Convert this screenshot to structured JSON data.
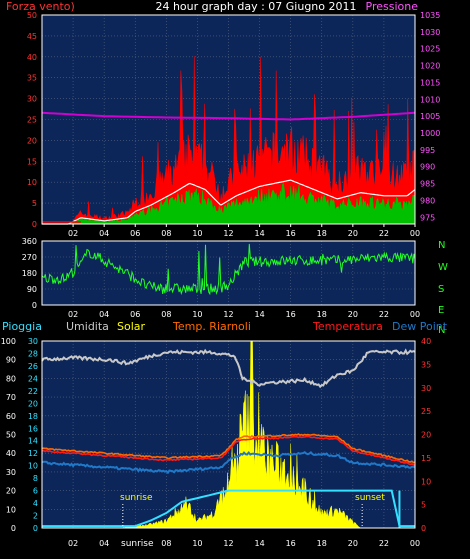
{
  "header": {
    "left_label": "Forza vento)",
    "title": "24 hour graph day : 07 Giugno 2011",
    "right_label": "Pressione"
  },
  "wind_chart": {
    "left_axis": [
      "50",
      "45",
      "40",
      "35",
      "30",
      "25",
      "20",
      "15",
      "10",
      "5",
      "0"
    ],
    "right_axis": [
      "1035",
      "1030",
      "1025",
      "1020",
      "1015",
      "1010",
      "1005",
      "1000",
      "995",
      "990",
      "985",
      "980",
      "975"
    ],
    "ylim_left": [
      0,
      50
    ],
    "ylim_right": [
      973,
      1035
    ],
    "pressure_profile": {
      "x": [
        0,
        4,
        8,
        12,
        16,
        20,
        24
      ],
      "hpa": [
        1006.0,
        1005.0,
        1004.6,
        1004.4,
        1004.0,
        1004.8,
        1006.0
      ]
    }
  },
  "direction_chart": {
    "left_axis": [
      "360",
      "270",
      "180",
      "90",
      "0"
    ],
    "compass": [
      "N",
      "W",
      "S",
      "E",
      "N"
    ],
    "ylim": [
      0,
      360
    ]
  },
  "legend": {
    "pioggia": "Pioggia",
    "umidita": "Umidita",
    "solar": "Solar",
    "riarnoli": "Temp. Riarnoli",
    "temperatura": "Temperatura",
    "dew": "Dew Point"
  },
  "weather_chart": {
    "rain_axis": [
      "100",
      "90",
      "80",
      "70",
      "60",
      "50",
      "40",
      "30",
      "20",
      "10",
      "0"
    ],
    "humidity_axis": [
      "30",
      "28",
      "26",
      "24",
      "22",
      "20",
      "18",
      "16",
      "14",
      "12",
      "10",
      "8",
      "6",
      "4",
      "2",
      "0"
    ],
    "temp_axis": [
      "40",
      "35",
      "30",
      "25",
      "20",
      "15",
      "10",
      "5",
      "0"
    ],
    "sunrise": "sunrise",
    "sunset": "sunset",
    "humidity_profile": {
      "x": [
        0,
        2,
        4.3,
        5.5,
        7,
        8,
        11,
        12.4,
        12.9,
        13.5,
        14,
        15,
        17,
        18,
        19,
        20,
        21,
        24
      ],
      "pct": [
        90,
        91,
        90,
        88,
        92,
        94,
        94,
        92,
        80,
        78,
        77,
        78,
        79,
        76,
        82,
        84,
        94,
        94
      ]
    },
    "riarnoli_profile": {
      "x": [
        0,
        4,
        8,
        11.5,
        12,
        12.5,
        13,
        17,
        19,
        20,
        22,
        24
      ],
      "temp": [
        17,
        16,
        15,
        15.5,
        17,
        19,
        19.5,
        20,
        19.5,
        17,
        15.5,
        14
      ]
    },
    "temperatura_profile": {
      "x": [
        0,
        4,
        8,
        11.5,
        12,
        12.5,
        13,
        17,
        19,
        20,
        22,
        24
      ],
      "temp": [
        16.5,
        15.5,
        14.5,
        15,
        16.5,
        18.5,
        19,
        19.5,
        19,
        16.5,
        15,
        13.5
      ]
    },
    "dew_profile": {
      "x": [
        0,
        4,
        8,
        11.5,
        12,
        13,
        15,
        17,
        19,
        20,
        22,
        24
      ],
      "temp": [
        14,
        13,
        12,
        13,
        14.5,
        16,
        15.5,
        16,
        15.5,
        14,
        13.5,
        13
      ]
    },
    "rain_step_profile": {
      "x": [
        0,
        3,
        6,
        7,
        8,
        9,
        12,
        22.5,
        23,
        24
      ],
      "pct": [
        1,
        1,
        1,
        4,
        8,
        14,
        20,
        20,
        1,
        1
      ]
    },
    "solar_peak_hour": 13.5
  },
  "time_labels": [
    "02",
    "04",
    "06",
    "08",
    "10",
    "12",
    "14",
    "16",
    "18",
    "20",
    "22",
    "00"
  ],
  "colors": {
    "panel_bg": "#0d2659",
    "grid": "#56657f",
    "frame": "#ffffff",
    "wind_max": "#ff0000",
    "wind_avg": "#00c000",
    "wind_line": "#ffffff",
    "pressure": "#d000d0",
    "direction": "#22ff22",
    "rain": "#33e0ff",
    "humidity": "#c8c8c8",
    "solar": "#ffff00",
    "riarnoli": "#ff6a00",
    "temperatura": "#ff1a1a",
    "dew": "#1f78c8",
    "pink_axis": "#ff55ff",
    "red_axis": "#ff3333",
    "cyan_axis": "#33e0ff"
  }
}
